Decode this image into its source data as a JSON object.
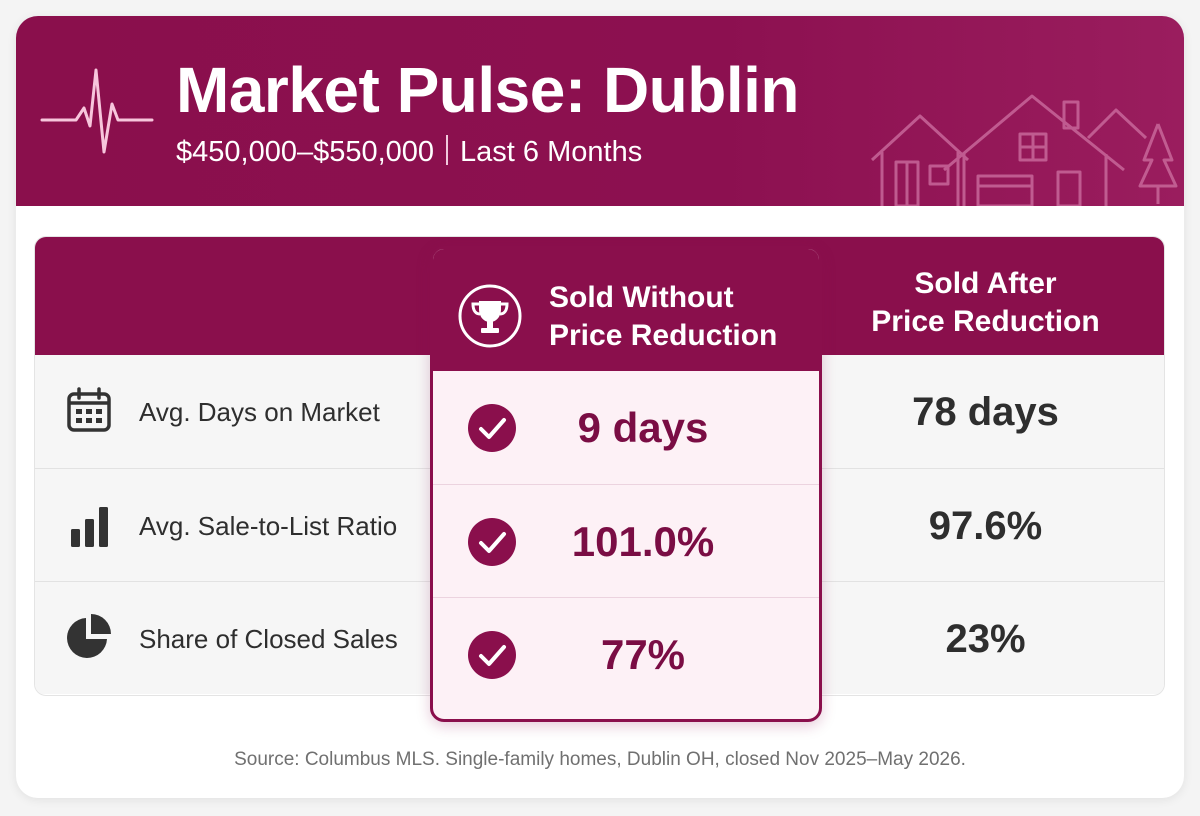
{
  "header": {
    "title": "Market Pulse: Dublin",
    "price_range": "$450,000–$550,000",
    "period": "Last 6 Months"
  },
  "columns": {
    "without": {
      "line1": "Sold Without",
      "line2": "Price Reduction"
    },
    "after": {
      "line1": "Sold After",
      "line2": "Price Reduction"
    }
  },
  "rows": [
    {
      "icon": "calendar-icon",
      "label": "Avg. Days on Market",
      "without": "9 days",
      "after": "78 days"
    },
    {
      "icon": "bar-chart-icon",
      "label": "Avg. Sale-to-List Ratio",
      "without": "101.0%",
      "after": "97.6%"
    },
    {
      "icon": "pie-chart-icon",
      "label": "Share of Closed Sales",
      "without": "77%",
      "after": "23%"
    }
  ],
  "source": "Source: Columbus MLS. Single-family homes, Dublin OH, closed Nov 2025–May 2026.",
  "colors": {
    "accent": "#8a0f4c",
    "highlight_bg": "#fdf1f6",
    "value_accent": "#7a0d44"
  }
}
